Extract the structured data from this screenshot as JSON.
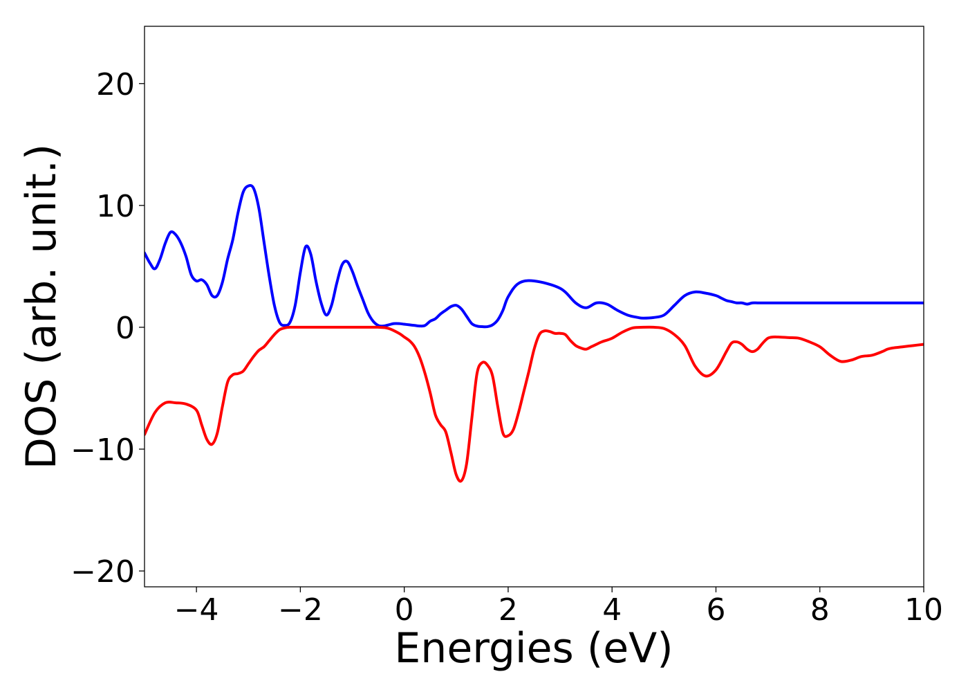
{
  "chart_data": {
    "type": "line",
    "title": "",
    "xlabel": "Energies (eV)",
    "ylabel": "DOS (arb. unit.)",
    "xlim": [
      -5,
      10
    ],
    "ylim": [
      -21.3,
      24.7
    ],
    "xticks": [
      -4,
      -2,
      0,
      2,
      4,
      6,
      8,
      10
    ],
    "xtick_labels": [
      "−4",
      "−2",
      "0",
      "2",
      "4",
      "6",
      "8",
      "10"
    ],
    "yticks": [
      -20,
      -10,
      0,
      10,
      20
    ],
    "ytick_labels": [
      "−20",
      "−10",
      "0",
      "10",
      "20"
    ],
    "grid": false,
    "legend": "none",
    "series": [
      {
        "color": "#0000ff",
        "x": [
          -5.0,
          -4.9,
          -4.8,
          -4.7,
          -4.6,
          -4.5,
          -4.4,
          -4.3,
          -4.2,
          -4.1,
          -4.0,
          -3.9,
          -3.8,
          -3.7,
          -3.6,
          -3.5,
          -3.4,
          -3.3,
          -3.2,
          -3.1,
          -3.0,
          -2.9,
          -2.8,
          -2.7,
          -2.6,
          -2.5,
          -2.4,
          -2.3,
          -2.2,
          -2.1,
          -2.0,
          -1.9,
          -1.8,
          -1.7,
          -1.6,
          -1.5,
          -1.4,
          -1.3,
          -1.2,
          -1.1,
          -1.0,
          -0.9,
          -0.8,
          -0.7,
          -0.6,
          -0.5,
          -0.4,
          -0.3,
          -0.2,
          -0.1,
          0.0,
          0.1,
          0.2,
          0.3,
          0.4,
          0.5,
          0.6,
          0.7,
          0.8,
          0.9,
          1.0,
          1.1,
          1.2,
          1.3,
          1.4,
          1.5,
          1.6,
          1.7,
          1.8,
          1.9,
          2.0,
          2.2,
          2.5,
          3.0,
          3.3,
          3.5,
          3.7,
          3.9,
          4.1,
          4.3,
          4.5,
          4.6,
          4.8,
          5.0,
          5.2,
          5.4,
          5.6,
          5.8,
          6.0,
          6.1,
          6.2,
          6.3,
          6.4,
          6.5,
          6.6,
          6.7,
          6.8,
          6.9,
          7.0,
          7.1,
          7.2,
          7.3,
          7.5,
          7.7,
          8.0,
          8.2,
          8.3,
          8.4,
          8.5,
          8.6,
          8.7,
          8.8,
          9.0,
          9.2,
          9.5,
          9.7,
          9.9,
          10.0
        ],
        "y": [
          6.1,
          5.3,
          4.8,
          5.6,
          6.9,
          7.8,
          7.6,
          6.9,
          5.8,
          4.3,
          3.8,
          3.9,
          3.5,
          2.6,
          2.6,
          3.7,
          5.6,
          7.2,
          9.4,
          11.1,
          11.6,
          11.4,
          9.8,
          7.0,
          4.2,
          1.8,
          0.4,
          0.15,
          0.4,
          1.8,
          4.5,
          6.6,
          6.0,
          3.8,
          2.0,
          1.0,
          1.8,
          3.6,
          5.1,
          5.4,
          4.6,
          3.4,
          2.3,
          1.2,
          0.5,
          0.15,
          0.1,
          0.2,
          0.3,
          0.3,
          0.25,
          0.2,
          0.15,
          0.1,
          0.15,
          0.5,
          0.7,
          1.1,
          1.4,
          1.7,
          1.8,
          1.5,
          0.9,
          0.3,
          0.1,
          0.05,
          0.05,
          0.2,
          0.6,
          1.4,
          2.5,
          3.6,
          3.8,
          3.2,
          2.0,
          1.6,
          2.0,
          1.9,
          1.4,
          1.0,
          0.8,
          0.75,
          0.8,
          1.0,
          1.8,
          2.6,
          2.9,
          2.8,
          2.6,
          2.4,
          2.2,
          2.1,
          2.0,
          2.0,
          1.9,
          2.0,
          2.0,
          2.0,
          2.0,
          2.0,
          2.0,
          2.0,
          2.0,
          2.0,
          2.0,
          2.0,
          2.0,
          2.0,
          2.0,
          2.0,
          2.0,
          2.0,
          2.0,
          2.0,
          2.0,
          2.0,
          2.0,
          2.0
        ]
      },
      {
        "color": "#ff0000",
        "x": [
          -5.0,
          -4.8,
          -4.6,
          -4.4,
          -4.2,
          -4.0,
          -3.9,
          -3.8,
          -3.7,
          -3.6,
          -3.5,
          -3.4,
          -3.3,
          -3.2,
          -3.1,
          -3.0,
          -2.9,
          -2.8,
          -2.7,
          -2.6,
          -2.5,
          -2.4,
          -2.3,
          -2.2,
          -2.0,
          -1.5,
          -1.0,
          -0.5,
          -0.3,
          -0.1,
          0.0,
          0.1,
          0.2,
          0.3,
          0.4,
          0.5,
          0.6,
          0.7,
          0.8,
          0.9,
          1.0,
          1.1,
          1.2,
          1.3,
          1.4,
          1.5,
          1.6,
          1.7,
          1.8,
          1.9,
          2.0,
          2.1,
          2.2,
          2.3,
          2.4,
          2.5,
          2.6,
          2.7,
          2.8,
          2.9,
          3.0,
          3.1,
          3.2,
          3.3,
          3.4,
          3.5,
          3.6,
          3.7,
          3.8,
          4.0,
          4.2,
          4.4,
          4.6,
          4.8,
          5.0,
          5.2,
          5.4,
          5.6,
          5.8,
          6.0,
          6.2,
          6.3,
          6.4,
          6.5,
          6.6,
          6.7,
          6.8,
          6.9,
          7.0,
          7.1,
          7.2,
          7.4,
          7.6,
          7.8,
          8.0,
          8.2,
          8.4,
          8.6,
          8.8,
          9.0,
          9.2,
          9.3,
          9.4,
          9.6,
          9.8,
          10.0
        ],
        "y": [
          -8.8,
          -7.0,
          -6.2,
          -6.2,
          -6.3,
          -6.8,
          -8.0,
          -9.2,
          -9.6,
          -8.7,
          -6.5,
          -4.5,
          -3.9,
          -3.8,
          -3.6,
          -3.0,
          -2.4,
          -1.9,
          -1.6,
          -1.1,
          -0.6,
          -0.2,
          -0.05,
          0.0,
          0.0,
          0.0,
          0.0,
          0.0,
          -0.1,
          -0.5,
          -0.8,
          -1.1,
          -1.6,
          -2.5,
          -3.8,
          -5.4,
          -7.2,
          -8.0,
          -8.6,
          -10.3,
          -12.1,
          -12.6,
          -11.2,
          -7.5,
          -3.8,
          -2.9,
          -3.1,
          -4.0,
          -6.5,
          -8.7,
          -8.9,
          -8.4,
          -7.0,
          -5.3,
          -3.6,
          -1.8,
          -0.6,
          -0.3,
          -0.35,
          -0.5,
          -0.5,
          -0.6,
          -1.1,
          -1.5,
          -1.7,
          -1.8,
          -1.6,
          -1.4,
          -1.2,
          -0.9,
          -0.4,
          -0.05,
          0.0,
          0.0,
          -0.1,
          -0.6,
          -1.5,
          -3.2,
          -4.0,
          -3.5,
          -2.0,
          -1.3,
          -1.2,
          -1.4,
          -1.8,
          -2.0,
          -1.8,
          -1.3,
          -0.9,
          -0.8,
          -0.8,
          -0.85,
          -0.9,
          -1.2,
          -1.6,
          -2.3,
          -2.8,
          -2.7,
          -2.4,
          -2.3,
          -2.0,
          -1.8,
          -1.7,
          -1.6,
          -1.5,
          -1.4
        ]
      }
    ]
  }
}
